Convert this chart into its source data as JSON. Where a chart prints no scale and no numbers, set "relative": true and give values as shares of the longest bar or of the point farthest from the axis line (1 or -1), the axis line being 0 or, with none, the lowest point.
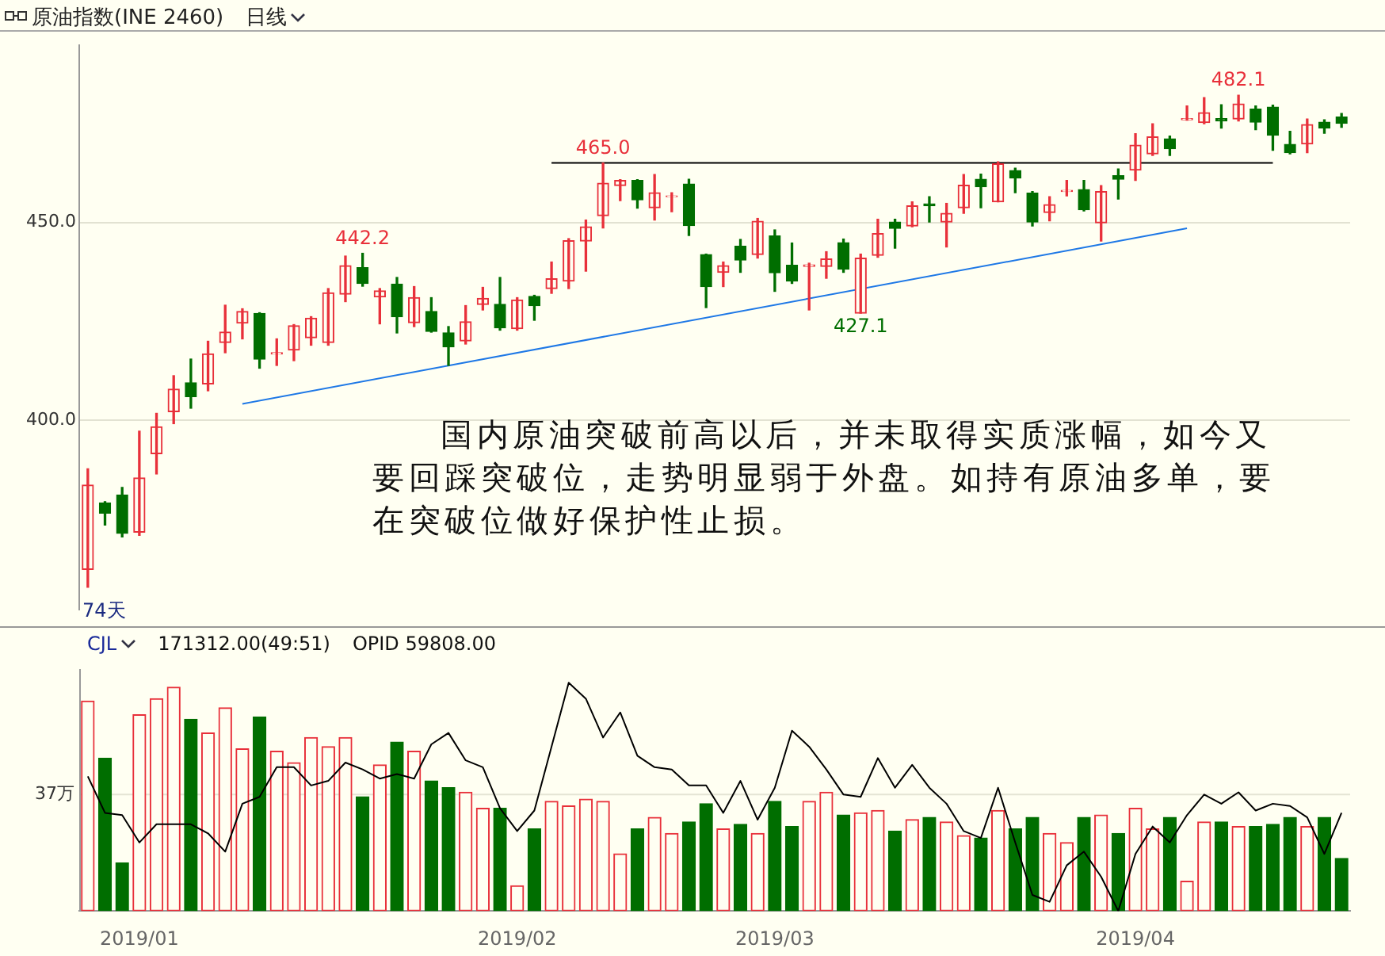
{
  "chart_data": [
    {
      "type": "candlestick",
      "title": "原油指数(INE 2460)",
      "subtitle": "日线",
      "annotations": [
        {
          "text": "442.2",
          "y": 442.2
        },
        {
          "text": "465.0",
          "y": 465.0
        },
        {
          "text": "427.1",
          "y": 427.1
        },
        {
          "text": "482.1",
          "y": 482.1
        },
        "国内原油突破前高以后，并未取得实质涨幅，如今又要回踩突破位，走势明显弱于外盘。如持有原油多单，要在突破位做好保护性止损。",
        "74天"
      ],
      "categories": [
        null,
        null,
        null,
        "2019/01",
        null,
        null,
        null,
        null,
        null,
        null,
        null,
        null,
        null,
        null,
        null,
        null,
        null,
        null,
        null,
        null,
        null,
        null,
        null,
        null,
        null,
        "2019/02",
        null,
        null,
        null,
        null,
        null,
        null,
        null,
        null,
        null,
        null,
        null,
        null,
        null,
        null,
        "2019/03",
        null,
        null,
        null,
        null,
        null,
        null,
        null,
        null,
        null,
        null,
        null,
        null,
        null,
        null,
        null,
        null,
        null,
        null,
        null,
        null,
        "2019/04",
        null,
        null,
        null,
        null,
        null,
        null,
        null,
        null,
        null,
        null,
        null,
        null
      ],
      "ohlc": [
        [
          362.4,
          387.8,
          357.9,
          383.7
        ],
        [
          379.2,
          379.5,
          373.6,
          376.6
        ],
        [
          381.2,
          383.1,
          370.6,
          371.5
        ],
        [
          371.8,
          397.3,
          371.0,
          385.5
        ],
        [
          391.6,
          401.8,
          386.5,
          398.4
        ],
        [
          402.2,
          411.3,
          399.2,
          407.9
        ],
        [
          409.5,
          415.5,
          403.1,
          406.0
        ],
        [
          409.2,
          420.0,
          407.5,
          416.8
        ],
        [
          419.7,
          429.1,
          417.1,
          422.3
        ],
        [
          424.6,
          428.2,
          420.6,
          427.5
        ],
        [
          427.0,
          427.2,
          413.2,
          415.5
        ],
        [
          416.8,
          420.6,
          413.9,
          417.1
        ],
        [
          417.8,
          424.2,
          415.1,
          423.9
        ],
        [
          420.9,
          426.2,
          419.0,
          425.8
        ],
        [
          419.7,
          433.3,
          419.0,
          432.2
        ],
        [
          431.9,
          441.5,
          430.0,
          439.1
        ],
        [
          438.6,
          442.2,
          433.9,
          434.6
        ],
        [
          431.2,
          433.3,
          424.4,
          432.7
        ],
        [
          434.4,
          436.1,
          422.1,
          426.2
        ],
        [
          424.7,
          433.8,
          423.7,
          431.0
        ],
        [
          427.5,
          431.0,
          422.3,
          422.5
        ],
        [
          422.1,
          423.7,
          413.9,
          418.6
        ],
        [
          420.1,
          429.0,
          419.3,
          424.9
        ],
        [
          429.3,
          433.6,
          427.9,
          430.8
        ],
        [
          429.3,
          436.1,
          422.8,
          423.4
        ],
        [
          423.2,
          431.0,
          422.8,
          430.4
        ],
        [
          431.3,
          431.6,
          425.3,
          429.0
        ],
        [
          433.3,
          440.0,
          432.1,
          435.8
        ],
        [
          435.2,
          445.9,
          433.3,
          445.4
        ],
        [
          445.3,
          450.6,
          437.7,
          448.9
        ],
        [
          451.7,
          465.0,
          448.6,
          459.9
        ],
        [
          459.3,
          460.8,
          455.5,
          460.6
        ],
        [
          460.6,
          460.8,
          453.6,
          455.7
        ],
        [
          453.7,
          462.1,
          450.6,
          457.5
        ],
        [
          456.5,
          457.5,
          452.7,
          456.7
        ],
        [
          459.7,
          460.9,
          446.7,
          449.2
        ],
        [
          441.9,
          442.0,
          428.5,
          433.8
        ],
        [
          437.4,
          440.0,
          433.8,
          439.1
        ],
        [
          444.0,
          445.7,
          437.4,
          440.5
        ],
        [
          441.9,
          451.0,
          441.0,
          450.3
        ],
        [
          446.6,
          448.1,
          432.6,
          437.3
        ],
        [
          439.2,
          444.8,
          434.6,
          435.2
        ],
        [
          438.9,
          439.7,
          427.9,
          439.3
        ],
        [
          438.9,
          442.6,
          435.9,
          440.8
        ],
        [
          444.9,
          445.8,
          437.4,
          438.2
        ],
        [
          427.1,
          442.0,
          427.1,
          441.0
        ],
        [
          441.7,
          450.8,
          441.2,
          447.2
        ],
        [
          450.1,
          450.8,
          443.5,
          448.5
        ],
        [
          449.1,
          455.2,
          448.9,
          454.2
        ],
        [
          454.7,
          456.5,
          450.1,
          454.2
        ],
        [
          450.1,
          454.8,
          443.8,
          452.3
        ],
        [
          453.7,
          462.1,
          452.3,
          459.4
        ],
        [
          460.9,
          462.2,
          453.7,
          459.0
        ],
        [
          455.2,
          465.3,
          455.2,
          464.8
        ],
        [
          463.1,
          463.7,
          457.5,
          461.2
        ],
        [
          457.4,
          457.8,
          449.1,
          450.1
        ],
        [
          452.5,
          456.5,
          450.4,
          454.5
        ],
        [
          457.8,
          460.6,
          456.7,
          458.1
        ],
        [
          458.3,
          460.6,
          452.9,
          453.2
        ],
        [
          449.9,
          459.3,
          445.3,
          457.8
        ],
        [
          461.8,
          463.5,
          455.9,
          460.9
        ],
        [
          463.2,
          472.4,
          460.6,
          469.5
        ],
        [
          467.3,
          474.9,
          466.9,
          471.6
        ],
        [
          471.1,
          471.8,
          466.9,
          468.6
        ],
        [
          475.9,
          479.4,
          475.8,
          476.2
        ],
        [
          475.2,
          481.5,
          474.9,
          477.7
        ],
        [
          476.2,
          479.7,
          473.8,
          475.6
        ],
        [
          476.1,
          482.1,
          475.6,
          479.9
        ],
        [
          478.6,
          479.4,
          473.4,
          475.3
        ],
        [
          479.1,
          479.6,
          468.2,
          472.0
        ],
        [
          469.7,
          473.0,
          467.3,
          467.6
        ],
        [
          469.8,
          476.1,
          467.6,
          474.7
        ],
        [
          475.3,
          475.9,
          472.5,
          473.8
        ],
        [
          476.6,
          477.5,
          474.0,
          475.0
        ]
      ],
      "colors": [
        "#e8303a",
        "#006e00",
        "#006e00",
        "#e8303a",
        "#e8303a",
        "#e8303a",
        "#006e00",
        "#e8303a",
        "#e8303a",
        "#e8303a",
        "#006e00",
        "#e8303a",
        "#e8303a",
        "#e8303a",
        "#e8303a",
        "#e8303a",
        "#006e00",
        "#e8303a",
        "#006e00",
        "#e8303a",
        "#006e00",
        "#006e00",
        "#e8303a",
        "#e8303a",
        "#006e00",
        "#e8303a",
        "#006e00",
        "#e8303a",
        "#e8303a",
        "#e8303a",
        "#e8303a",
        "#e8303a",
        "#006e00",
        "#e8303a",
        "#e8303a",
        "#006e00",
        "#006e00",
        "#e8303a",
        "#006e00",
        "#e8303a",
        "#006e00",
        "#006e00",
        "#e8303a",
        "#e8303a",
        "#006e00",
        "#e8303a",
        "#e8303a",
        "#006e00",
        "#e8303a",
        "#006e00",
        "#e8303a",
        "#e8303a",
        "#006e00",
        "#e8303a",
        "#006e00",
        "#006e00",
        "#e8303a",
        "#e8303a",
        "#006e00",
        "#e8303a",
        "#006e00",
        "#e8303a",
        "#e8303a",
        "#006e00",
        "#e8303a",
        "#e8303a",
        "#006e00",
        "#e8303a",
        "#006e00",
        "#006e00",
        "#006e00",
        "#e8303a",
        "#006e00",
        "#006e00"
      ],
      "ylim": [
        352.3,
        494.7
      ],
      "yticks": [
        {
          "value": 400,
          "label": "400.0"
        },
        {
          "value": 450,
          "label": "450.0"
        }
      ],
      "grid": "y",
      "tick_labels": "y",
      "series": [
        {
          "type": "line",
          "values": [
            null,
            null,
            null,
            null,
            null,
            null,
            null,
            null,
            null,
            404.2,
            null,
            null,
            null,
            null,
            null,
            null,
            null,
            null,
            null,
            null,
            null,
            null,
            null,
            null,
            null,
            null,
            null,
            null,
            null,
            null,
            null,
            null,
            null,
            null,
            null,
            null,
            null,
            null,
            null,
            null,
            null,
            null,
            null,
            null,
            null,
            null,
            null,
            null,
            null,
            null,
            null,
            null,
            null,
            null,
            null,
            null,
            null,
            null,
            null,
            null,
            null,
            null,
            null,
            null,
            448.5,
            null,
            null,
            null,
            null,
            null,
            null,
            null,
            null,
            null
          ],
          "color": "#1e78e6"
        },
        {
          "type": "line",
          "values": [
            null,
            null,
            null,
            null,
            null,
            null,
            null,
            null,
            null,
            null,
            null,
            null,
            null,
            null,
            null,
            null,
            null,
            null,
            null,
            null,
            null,
            null,
            null,
            null,
            null,
            null,
            null,
            465.0,
            null,
            null,
            null,
            null,
            null,
            null,
            null,
            null,
            null,
            null,
            null,
            null,
            null,
            null,
            null,
            null,
            null,
            null,
            null,
            null,
            null,
            null,
            null,
            null,
            null,
            null,
            null,
            null,
            null,
            null,
            null,
            null,
            null,
            null,
            null,
            null,
            null,
            null,
            null,
            null,
            null,
            465.0,
            null,
            null,
            null,
            null
          ],
          "color": "#000000"
        }
      ]
    },
    {
      "type": "bar",
      "title": "CJL",
      "annotations": [
        "171312.00(49:51)",
        "OPID 59808.00"
      ],
      "categories": [
        null,
        null,
        null,
        "2019/01",
        null,
        null,
        null,
        null,
        null,
        null,
        null,
        null,
        null,
        null,
        null,
        null,
        null,
        null,
        null,
        null,
        null,
        null,
        null,
        null,
        null,
        "2019/02",
        null,
        null,
        null,
        null,
        null,
        null,
        null,
        null,
        null,
        null,
        null,
        null,
        null,
        null,
        "2019/03",
        null,
        null,
        null,
        null,
        null,
        null,
        null,
        null,
        null,
        null,
        null,
        null,
        null,
        null,
        null,
        null,
        null,
        null,
        null,
        null,
        "2019/04",
        null,
        null,
        null,
        null,
        null,
        null,
        null,
        null,
        null,
        null,
        null,
        null
      ],
      "relative": true,
      "tick_labels": "x",
      "ref_lines": [
        {
          "axis": "y",
          "value": 0.51,
          "label": "37万",
          "color": "#e4e4d4"
        }
      ],
      "series": [
        {
          "type": "bar",
          "colors": [
            "#e8303a",
            "#006e00",
            "#006e00",
            "#e8303a",
            "#e8303a",
            "#e8303a",
            "#006e00",
            "#e8303a",
            "#e8303a",
            "#e8303a",
            "#006e00",
            "#e8303a",
            "#e8303a",
            "#e8303a",
            "#e8303a",
            "#e8303a",
            "#006e00",
            "#e8303a",
            "#006e00",
            "#e8303a",
            "#006e00",
            "#006e00",
            "#e8303a",
            "#e8303a",
            "#006e00",
            "#e8303a",
            "#006e00",
            "#e8303a",
            "#e8303a",
            "#e8303a",
            "#e8303a",
            "#e8303a",
            "#006e00",
            "#e8303a",
            "#e8303a",
            "#006e00",
            "#006e00",
            "#e8303a",
            "#006e00",
            "#e8303a",
            "#006e00",
            "#006e00",
            "#e8303a",
            "#e8303a",
            "#006e00",
            "#e8303a",
            "#e8303a",
            "#006e00",
            "#e8303a",
            "#006e00",
            "#e8303a",
            "#e8303a",
            "#006e00",
            "#e8303a",
            "#006e00",
            "#006e00",
            "#e8303a",
            "#e8303a",
            "#006e00",
            "#e8303a",
            "#006e00",
            "#e8303a",
            "#e8303a",
            "#006e00",
            "#e8303a",
            "#e8303a",
            "#006e00",
            "#e8303a",
            "#006e00",
            "#006e00",
            "#006e00",
            "#e8303a",
            "#006e00",
            "#006e00"
          ],
          "values": [
            0.92,
            0.67,
            0.21,
            0.86,
            0.93,
            0.98,
            0.84,
            0.78,
            0.89,
            0.71,
            0.85,
            0.7,
            0.65,
            0.76,
            0.72,
            0.76,
            0.5,
            0.64,
            0.74,
            0.7,
            0.57,
            0.54,
            0.52,
            0.45,
            0.45,
            0.11,
            0.36,
            0.48,
            0.46,
            0.49,
            0.48,
            0.25,
            0.36,
            0.41,
            0.34,
            0.39,
            0.47,
            0.36,
            0.38,
            0.34,
            0.48,
            0.37,
            0.48,
            0.52,
            0.42,
            0.43,
            0.44,
            0.35,
            0.4,
            0.41,
            0.39,
            0.33,
            0.32,
            0.44,
            0.36,
            0.41,
            0.34,
            0.3,
            0.41,
            0.42,
            0.34,
            0.45,
            0.36,
            0.41,
            0.13,
            0.39,
            0.39,
            0.37,
            0.37,
            0.38,
            0.41,
            0.37,
            0.41,
            0.23
          ]
        },
        {
          "type": "line",
          "color": "#000000",
          "values": [
            0.59,
            0.43,
            0.42,
            0.3,
            0.38,
            0.38,
            0.38,
            0.34,
            0.26,
            0.47,
            0.5,
            0.63,
            0.63,
            0.55,
            0.57,
            0.65,
            0.62,
            0.58,
            0.6,
            0.58,
            0.73,
            0.78,
            0.66,
            0.63,
            0.45,
            0.35,
            0.44,
            0.72,
            1,
            0.93,
            0.76,
            0.87,
            0.68,
            0.63,
            0.62,
            0.55,
            0.55,
            0.43,
            0.57,
            0.4,
            0.54,
            0.79,
            0.72,
            0.62,
            0.51,
            0.5,
            0.67,
            0.54,
            0.64,
            0.54,
            0.47,
            0.35,
            0.32,
            0.54,
            0.3,
            0.07,
            0.04,
            0.2,
            0.26,
            0.15,
            0,
            0.25,
            0.37,
            0.3,
            0.42,
            0.51,
            0.47,
            0.52,
            0.44,
            0.47,
            0.46,
            0.41,
            0.25,
            0.43
          ]
        }
      ]
    }
  ]
}
